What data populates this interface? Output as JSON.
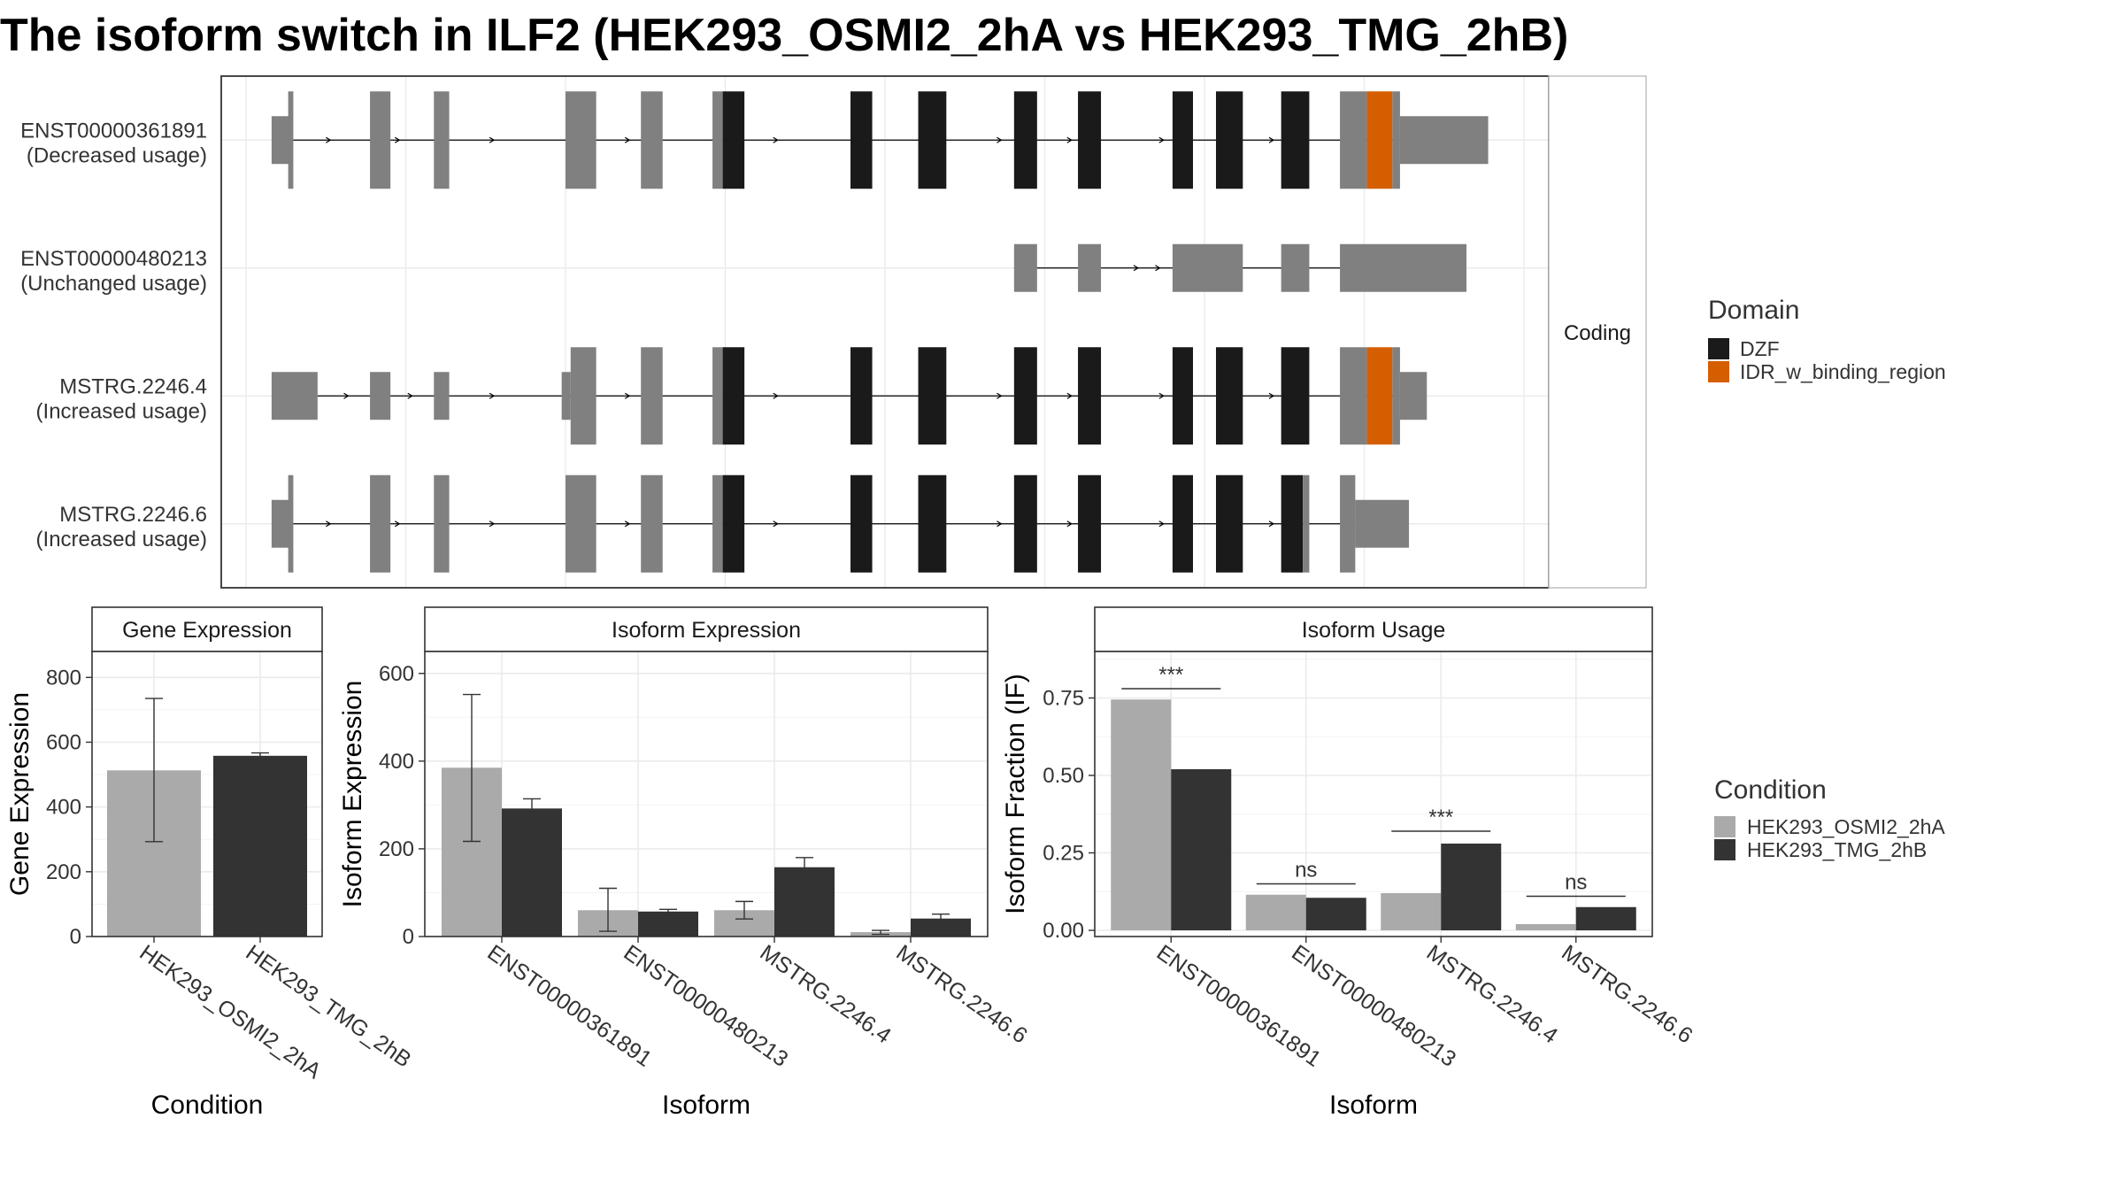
{
  "title": "The isoform switch in ILF2 (HEK293_OSMI2_2hA vs HEK293_TMG_2hB)",
  "colors": {
    "noncoding_exon": "#808080",
    "DZF": "#1a1a1a",
    "IDR_w_binding_region": "#d55e00",
    "HEK293_OSMI2_2hA": "#aaaaaa",
    "HEK293_TMG_2hB": "#333333",
    "grid": "#ebebeb",
    "panel_border": "#333333"
  },
  "chart_data": [
    {
      "type": "gene-structure",
      "facet_label": "Coding",
      "genomic_range": [
        0,
        1000
      ],
      "transcripts": [
        {
          "id": "ENST00000361891",
          "label": "ENST00000361891",
          "usage": "(Decreased usage)",
          "intron": [
            33,
            905
          ],
          "arrows": [
            66,
            120,
            194,
            300,
            416,
            530,
            591,
            646,
            718,
            804
          ],
          "exons": [
            {
              "s": 20,
              "e": 36,
              "w": "utr"
            },
            {
              "s": 33,
              "e": 37,
              "w": "cds",
              "d": "none"
            },
            {
              "s": 97,
              "e": 113,
              "w": "cds",
              "d": "none"
            },
            {
              "s": 147,
              "e": 159,
              "w": "cds",
              "d": "none"
            },
            {
              "s": 250,
              "e": 274,
              "w": "cds",
              "d": "none"
            },
            {
              "s": 309,
              "e": 326,
              "w": "cds",
              "d": "none"
            },
            {
              "s": 365,
              "e": 373,
              "w": "cds",
              "d": "none"
            },
            {
              "s": 373,
              "e": 390,
              "w": "cds",
              "d": "DZF"
            },
            {
              "s": 473,
              "e": 490,
              "w": "cds",
              "d": "DZF"
            },
            {
              "s": 526,
              "e": 548,
              "w": "cds",
              "d": "DZF"
            },
            {
              "s": 601,
              "e": 619,
              "w": "cds",
              "d": "DZF"
            },
            {
              "s": 651,
              "e": 669,
              "w": "cds",
              "d": "DZF"
            },
            {
              "s": 725,
              "e": 741,
              "w": "cds",
              "d": "DZF"
            },
            {
              "s": 759,
              "e": 780,
              "w": "cds",
              "d": "DZF"
            },
            {
              "s": 810,
              "e": 832,
              "w": "cds",
              "d": "DZF"
            },
            {
              "s": 856,
              "e": 877,
              "w": "cds",
              "d": "none"
            },
            {
              "s": 877,
              "e": 897,
              "w": "cds",
              "d": "IDR_w_binding_region"
            },
            {
              "s": 897,
              "e": 903,
              "w": "cds",
              "d": "none"
            },
            {
              "s": 903,
              "e": 972,
              "w": "utr"
            }
          ]
        },
        {
          "id": "ENST00000480213",
          "label": "ENST00000480213",
          "usage": "(Unchanged usage)",
          "intron": [
            601,
            860
          ],
          "arrows": [
            698,
            715
          ],
          "exons": [
            {
              "s": 601,
              "e": 619,
              "w": "utr"
            },
            {
              "s": 651,
              "e": 669,
              "w": "utr"
            },
            {
              "s": 725,
              "e": 780,
              "w": "utr"
            },
            {
              "s": 810,
              "e": 832,
              "w": "utr"
            },
            {
              "s": 856,
              "e": 955,
              "w": "utr"
            }
          ]
        },
        {
          "id": "MSTRG.2246.4",
          "label": "MSTRG.2246.4",
          "usage": "(Increased usage)",
          "intron": [
            56,
            905
          ],
          "arrows": [
            80,
            130,
            194,
            300,
            416,
            530,
            591,
            646,
            718,
            804
          ],
          "exons": [
            {
              "s": 20,
              "e": 56,
              "w": "utr"
            },
            {
              "s": 97,
              "e": 113,
              "w": "utr"
            },
            {
              "s": 147,
              "e": 159,
              "w": "utr"
            },
            {
              "s": 247,
              "e": 254,
              "w": "utr"
            },
            {
              "s": 254,
              "e": 274,
              "w": "cds",
              "d": "none"
            },
            {
              "s": 309,
              "e": 326,
              "w": "cds",
              "d": "none"
            },
            {
              "s": 365,
              "e": 373,
              "w": "cds",
              "d": "none"
            },
            {
              "s": 373,
              "e": 390,
              "w": "cds",
              "d": "DZF"
            },
            {
              "s": 473,
              "e": 490,
              "w": "cds",
              "d": "DZF"
            },
            {
              "s": 526,
              "e": 548,
              "w": "cds",
              "d": "DZF"
            },
            {
              "s": 601,
              "e": 619,
              "w": "cds",
              "d": "DZF"
            },
            {
              "s": 651,
              "e": 669,
              "w": "cds",
              "d": "DZF"
            },
            {
              "s": 725,
              "e": 741,
              "w": "cds",
              "d": "DZF"
            },
            {
              "s": 759,
              "e": 780,
              "w": "cds",
              "d": "DZF"
            },
            {
              "s": 810,
              "e": 832,
              "w": "cds",
              "d": "DZF"
            },
            {
              "s": 856,
              "e": 877,
              "w": "cds",
              "d": "none"
            },
            {
              "s": 877,
              "e": 897,
              "w": "cds",
              "d": "IDR_w_binding_region"
            },
            {
              "s": 897,
              "e": 903,
              "w": "cds",
              "d": "none"
            },
            {
              "s": 903,
              "e": 924,
              "w": "utr"
            }
          ]
        },
        {
          "id": "MSTRG.2246.6",
          "label": "MSTRG.2246.6",
          "usage": "(Increased usage)",
          "intron": [
            33,
            868
          ],
          "arrows": [
            66,
            120,
            194,
            300,
            416,
            530,
            591,
            646,
            718,
            804,
            890
          ],
          "exons": [
            {
              "s": 20,
              "e": 36,
              "w": "utr"
            },
            {
              "s": 33,
              "e": 37,
              "w": "cds",
              "d": "none"
            },
            {
              "s": 97,
              "e": 113,
              "w": "cds",
              "d": "none"
            },
            {
              "s": 147,
              "e": 159,
              "w": "cds",
              "d": "none"
            },
            {
              "s": 250,
              "e": 274,
              "w": "cds",
              "d": "none"
            },
            {
              "s": 309,
              "e": 326,
              "w": "cds",
              "d": "none"
            },
            {
              "s": 365,
              "e": 373,
              "w": "cds",
              "d": "none"
            },
            {
              "s": 373,
              "e": 390,
              "w": "cds",
              "d": "DZF"
            },
            {
              "s": 473,
              "e": 490,
              "w": "cds",
              "d": "DZF"
            },
            {
              "s": 526,
              "e": 548,
              "w": "cds",
              "d": "DZF"
            },
            {
              "s": 601,
              "e": 619,
              "w": "cds",
              "d": "DZF"
            },
            {
              "s": 651,
              "e": 669,
              "w": "cds",
              "d": "DZF"
            },
            {
              "s": 725,
              "e": 741,
              "w": "cds",
              "d": "DZF"
            },
            {
              "s": 759,
              "e": 780,
              "w": "cds",
              "d": "DZF"
            },
            {
              "s": 810,
              "e": 827,
              "w": "cds",
              "d": "DZF"
            },
            {
              "s": 827,
              "e": 832,
              "w": "cds",
              "d": "none"
            },
            {
              "s": 856,
              "e": 868,
              "w": "cds",
              "d": "none"
            },
            {
              "s": 868,
              "e": 910,
              "w": "utr"
            }
          ]
        }
      ],
      "legend": {
        "title": "Domain",
        "entries": [
          "DZF",
          "IDR_w_binding_region"
        ]
      }
    },
    {
      "type": "bar",
      "panel": "Gene Expression",
      "xlabel": "Condition",
      "ylabel": "Gene Expression",
      "ylim": [
        0,
        880
      ],
      "yticks": [
        0,
        200,
        400,
        600,
        800
      ],
      "categories": [
        "HEK293_OSMI2_2hA",
        "HEK293_TMG_2hB"
      ],
      "values": [
        513,
        558
      ],
      "errors": [
        [
          293,
          735
        ],
        [
          549,
          567
        ]
      ]
    },
    {
      "type": "bar",
      "panel": "Isoform Expression",
      "xlabel": "Isoform",
      "ylabel": "Isoform Expression",
      "ylim": [
        0,
        650
      ],
      "yticks": [
        0,
        200,
        400,
        600
      ],
      "categories": [
        "ENST00000361891",
        "ENST00000480213",
        "MSTRG.2246.4",
        "MSTRG.2246.6"
      ],
      "series": [
        {
          "name": "HEK293_OSMI2_2hA",
          "values": [
            385,
            60,
            60,
            10
          ],
          "errors": [
            [
              217,
              552
            ],
            [
              12,
              110
            ],
            [
              40,
              80
            ],
            [
              5,
              14
            ]
          ]
        },
        {
          "name": "HEK293_TMG_2hB",
          "values": [
            292,
            57,
            158,
            41
          ],
          "errors": [
            [
              268,
              314
            ],
            [
              52,
              62
            ],
            [
              136,
              180
            ],
            [
              31,
              51
            ]
          ]
        }
      ]
    },
    {
      "type": "bar",
      "panel": "Isoform Usage",
      "xlabel": "Isoform",
      "ylabel": "Isoform Fraction (IF)",
      "ylim": [
        -0.02,
        0.9
      ],
      "yticks": [
        0.0,
        0.25,
        0.5,
        0.75
      ],
      "ytick_labels": [
        "0.00",
        "0.25",
        "0.50",
        "0.75"
      ],
      "categories": [
        "ENST00000361891",
        "ENST00000480213",
        "MSTRG.2246.4",
        "MSTRG.2246.6"
      ],
      "series": [
        {
          "name": "HEK293_OSMI2_2hA",
          "values": [
            0.745,
            0.115,
            0.12,
            0.02
          ]
        },
        {
          "name": "HEK293_TMG_2hB",
          "values": [
            0.52,
            0.105,
            0.28,
            0.075
          ]
        }
      ],
      "significance": [
        {
          "category": 0,
          "label": "***",
          "y": 0.78
        },
        {
          "category": 1,
          "label": "ns",
          "y": 0.15
        },
        {
          "category": 2,
          "label": "***",
          "y": 0.32
        },
        {
          "category": 3,
          "label": "ns",
          "y": 0.11
        }
      ],
      "legend": {
        "title": "Condition",
        "entries": [
          "HEK293_OSMI2_2hA",
          "HEK293_TMG_2hB"
        ]
      }
    }
  ]
}
